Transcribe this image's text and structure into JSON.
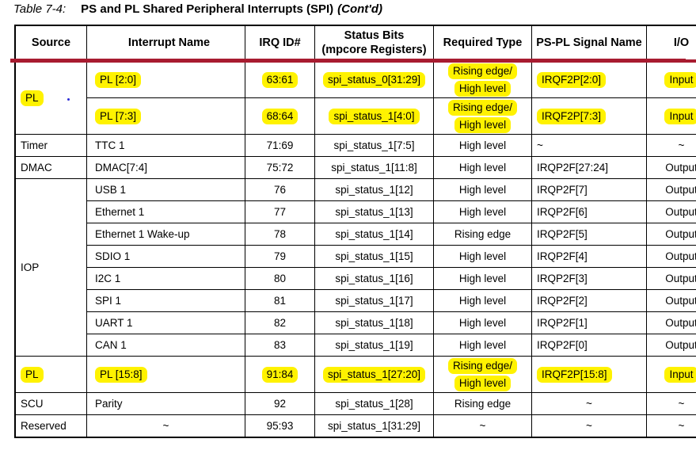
{
  "title": {
    "label": "Table 7-4:",
    "text": "PS and PL Shared Peripheral Interrupts (SPI)",
    "contd": "(Cont'd)"
  },
  "colors": {
    "highlight": "#fff200",
    "header_rule": "#a81c30",
    "border": "#000000",
    "stray_dot": "#2b2bd6"
  },
  "table": {
    "columns": [
      {
        "key": "source",
        "label": "Source"
      },
      {
        "key": "name",
        "label": "Interrupt Name"
      },
      {
        "key": "irq",
        "label": "IRQ ID#"
      },
      {
        "key": "status",
        "label": "Status Bits\n(mpcore Registers)"
      },
      {
        "key": "type",
        "label": "Required Type"
      },
      {
        "key": "signal",
        "label": "PS-PL Signal Name"
      },
      {
        "key": "io",
        "label": "I/O"
      }
    ],
    "rows": [
      {
        "tall": true,
        "cells": [
          {
            "col": "source",
            "text": "PL",
            "hl": true,
            "rowspan": 2
          },
          {
            "col": "name",
            "text": "PL [2:0]",
            "hl": true
          },
          {
            "col": "irq",
            "text": "63:61",
            "hl": true
          },
          {
            "col": "status",
            "text": "spi_status_0[31:29]",
            "hl": true
          },
          {
            "col": "type",
            "lines": [
              "Rising edge/",
              "High level"
            ],
            "hl": true
          },
          {
            "col": "signal",
            "text": "IRQF2P[2:0]",
            "hl": true
          },
          {
            "col": "io",
            "text": "Input",
            "hl": true
          }
        ]
      },
      {
        "tall": true,
        "cells": [
          {
            "col": "name",
            "text": "PL [7:3]",
            "hl": true
          },
          {
            "col": "irq",
            "text": "68:64",
            "hl": true
          },
          {
            "col": "status",
            "text": "spi_status_1[4:0]",
            "hl": true
          },
          {
            "col": "type",
            "lines": [
              "Rising edge/",
              "High level"
            ],
            "hl": true
          },
          {
            "col": "signal",
            "text": "IRQF2P[7:3]",
            "hl": true
          },
          {
            "col": "io",
            "text": "Input",
            "hl": true
          }
        ]
      },
      {
        "cells": [
          {
            "col": "source",
            "text": "Timer"
          },
          {
            "col": "name",
            "text": "TTC 1"
          },
          {
            "col": "irq",
            "text": "71:69"
          },
          {
            "col": "status",
            "text": "spi_status_1[7:5]"
          },
          {
            "col": "type",
            "text": "High level"
          },
          {
            "col": "signal",
            "text": "~"
          },
          {
            "col": "io",
            "text": "~"
          }
        ]
      },
      {
        "cells": [
          {
            "col": "source",
            "text": "DMAC"
          },
          {
            "col": "name",
            "text": "DMAC[7:4]"
          },
          {
            "col": "irq",
            "text": "75:72"
          },
          {
            "col": "status",
            "text": "spi_status_1[11:8]"
          },
          {
            "col": "type",
            "text": "High level"
          },
          {
            "col": "signal",
            "text": "IRQP2F[27:24]"
          },
          {
            "col": "io",
            "text": "Output"
          }
        ]
      },
      {
        "cells": [
          {
            "col": "source",
            "text": "IOP",
            "rowspan": 8
          },
          {
            "col": "name",
            "text": "USB 1"
          },
          {
            "col": "irq",
            "text": "76"
          },
          {
            "col": "status",
            "text": "spi_status_1[12]"
          },
          {
            "col": "type",
            "text": "High level"
          },
          {
            "col": "signal",
            "text": "IRQP2F[7]"
          },
          {
            "col": "io",
            "text": "Output"
          }
        ]
      },
      {
        "cells": [
          {
            "col": "name",
            "text": "Ethernet 1"
          },
          {
            "col": "irq",
            "text": "77"
          },
          {
            "col": "status",
            "text": "spi_status_1[13]"
          },
          {
            "col": "type",
            "text": "High level"
          },
          {
            "col": "signal",
            "text": "IRQP2F[6]"
          },
          {
            "col": "io",
            "text": "Output"
          }
        ]
      },
      {
        "cells": [
          {
            "col": "name",
            "text": "Ethernet 1 Wake-up"
          },
          {
            "col": "irq",
            "text": "78"
          },
          {
            "col": "status",
            "text": "spi_status_1[14]"
          },
          {
            "col": "type",
            "text": "Rising edge"
          },
          {
            "col": "signal",
            "text": "IRQP2F[5]"
          },
          {
            "col": "io",
            "text": "Output"
          }
        ]
      },
      {
        "cells": [
          {
            "col": "name",
            "text": "SDIO 1"
          },
          {
            "col": "irq",
            "text": "79"
          },
          {
            "col": "status",
            "text": "spi_status_1[15]"
          },
          {
            "col": "type",
            "text": "High level"
          },
          {
            "col": "signal",
            "text": "IRQP2F[4]"
          },
          {
            "col": "io",
            "text": "Output"
          }
        ]
      },
      {
        "cells": [
          {
            "col": "name",
            "text": "I2C 1"
          },
          {
            "col": "irq",
            "text": "80"
          },
          {
            "col": "status",
            "text": "spi_status_1[16]"
          },
          {
            "col": "type",
            "text": "High level"
          },
          {
            "col": "signal",
            "text": "IRQP2F[3]"
          },
          {
            "col": "io",
            "text": "Output"
          }
        ]
      },
      {
        "cells": [
          {
            "col": "name",
            "text": "SPI 1"
          },
          {
            "col": "irq",
            "text": "81"
          },
          {
            "col": "status",
            "text": "spi_status_1[17]"
          },
          {
            "col": "type",
            "text": "High level"
          },
          {
            "col": "signal",
            "text": "IRQP2F[2]"
          },
          {
            "col": "io",
            "text": "Output"
          }
        ]
      },
      {
        "cells": [
          {
            "col": "name",
            "text": "UART 1"
          },
          {
            "col": "irq",
            "text": "82"
          },
          {
            "col": "status",
            "text": "spi_status_1[18]"
          },
          {
            "col": "type",
            "text": "High level"
          },
          {
            "col": "signal",
            "text": "IRQP2F[1]"
          },
          {
            "col": "io",
            "text": "Output"
          }
        ]
      },
      {
        "cells": [
          {
            "col": "name",
            "text": "CAN 1"
          },
          {
            "col": "irq",
            "text": "83"
          },
          {
            "col": "status",
            "text": "spi_status_1[19]"
          },
          {
            "col": "type",
            "text": "High level"
          },
          {
            "col": "signal",
            "text": "IRQP2F[0]"
          },
          {
            "col": "io",
            "text": "Output"
          }
        ]
      },
      {
        "tall": true,
        "cells": [
          {
            "col": "source",
            "text": "PL",
            "hl": true
          },
          {
            "col": "name",
            "text": "PL [15:8]",
            "hl": true
          },
          {
            "col": "irq",
            "text": "91:84",
            "hl": true
          },
          {
            "col": "status",
            "text": "spi_status_1[27:20]",
            "hl": true
          },
          {
            "col": "type",
            "lines": [
              "Rising edge/",
              "High level"
            ],
            "hl": true
          },
          {
            "col": "signal",
            "text": "IRQF2P[15:8]",
            "hl": true
          },
          {
            "col": "io",
            "text": "Input",
            "hl": true
          }
        ]
      },
      {
        "cells": [
          {
            "col": "source",
            "text": "SCU"
          },
          {
            "col": "name",
            "text": "Parity"
          },
          {
            "col": "irq",
            "text": "92"
          },
          {
            "col": "status",
            "text": "spi_status_1[28]"
          },
          {
            "col": "type",
            "text": "Rising edge"
          },
          {
            "col": "signal",
            "text": "~",
            "align": "center"
          },
          {
            "col": "io",
            "text": "~"
          }
        ]
      },
      {
        "cells": [
          {
            "col": "source",
            "text": "Reserved"
          },
          {
            "col": "name",
            "text": "~",
            "align": "center"
          },
          {
            "col": "irq",
            "text": "95:93"
          },
          {
            "col": "status",
            "text": "spi_status_1[31:29]"
          },
          {
            "col": "type",
            "text": "~"
          },
          {
            "col": "signal",
            "text": "~",
            "align": "center"
          },
          {
            "col": "io",
            "text": "~"
          }
        ]
      }
    ]
  }
}
